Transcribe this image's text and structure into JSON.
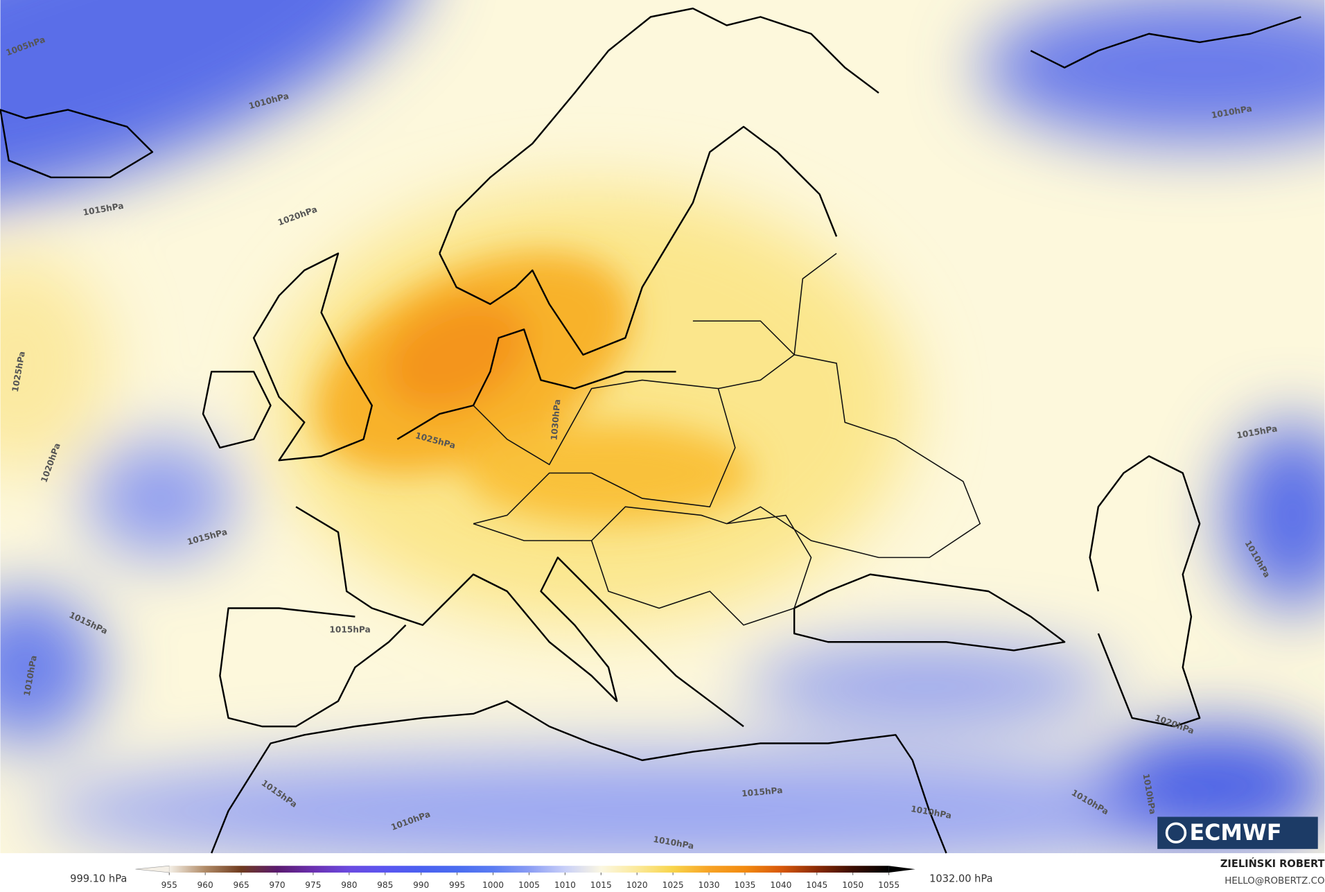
{
  "map": {
    "contour_labels": [
      "1005hPa",
      "1010hPa",
      "1015hPa",
      "1020hPa",
      "1025hPa",
      "1020hPa",
      "1015hPa",
      "1015hPa",
      "1010hPa",
      "1015hPa",
      "1030hPa",
      "1025hPa",
      "1010hPa",
      "1015hPa",
      "1010hPa",
      "1020hPa",
      "1015hPa",
      "1010hPa",
      "1015hPa",
      "1010hPa",
      "1010hPa",
      "1010hPa",
      "1010hPa"
    ]
  },
  "logo": "ECMWF",
  "colorbar": {
    "min_label": "999.10 hPa",
    "max_label": "1032.00 hPa",
    "ticks": [
      955,
      960,
      965,
      970,
      975,
      980,
      985,
      990,
      995,
      1000,
      1005,
      1010,
      1015,
      1020,
      1025,
      1030,
      1035,
      1040,
      1045,
      1050,
      1055
    ],
    "colors": [
      "#f4efe6",
      "#b08a66",
      "#6e3a1e",
      "#5a1a6e",
      "#6a2fb0",
      "#6a4ae0",
      "#5a55f0",
      "#4a60f0",
      "#4a6cf0",
      "#5a7cf2",
      "#8a9cf4",
      "#c8cff8",
      "#fbf7e2",
      "#fbe99a",
      "#f8d44a",
      "#f7a325",
      "#f28a10",
      "#d8580a",
      "#8a2a06",
      "#3a0d02",
      "#000000"
    ]
  },
  "credits": {
    "name": "ZIELIŃSKI ROBERT",
    "email": "HELLO@ROBERTZ.CO"
  }
}
